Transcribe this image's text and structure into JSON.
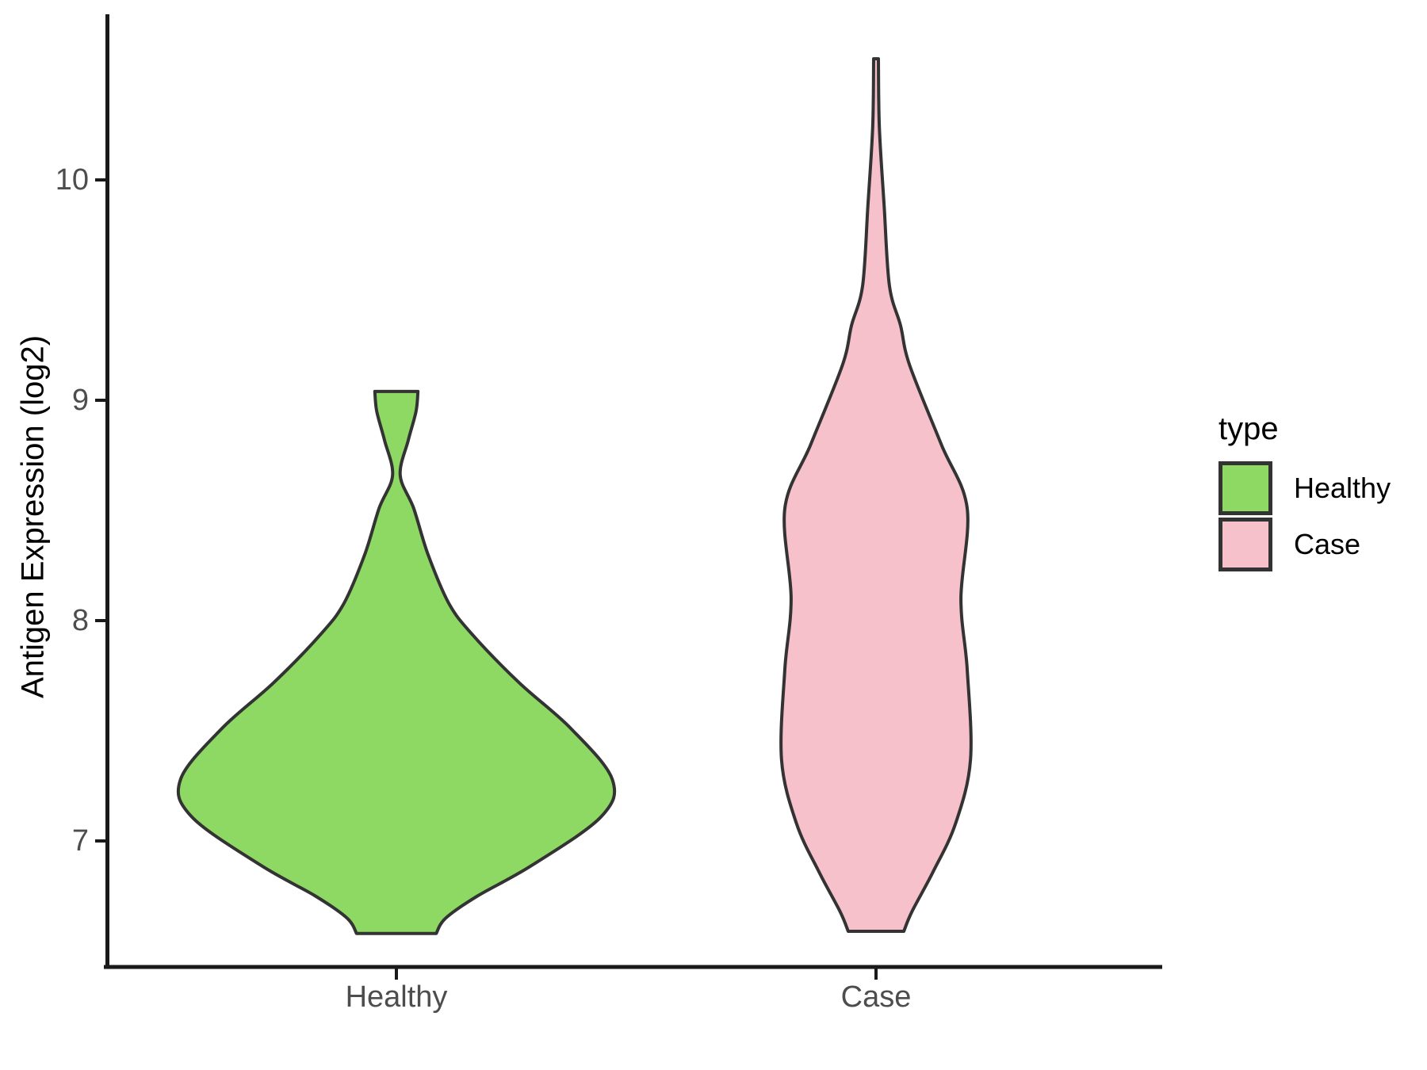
{
  "y_axis": {
    "title": "Antigen Expression (log2)",
    "ticks": [
      10,
      9,
      8,
      7
    ]
  },
  "x_axis": {
    "categories": [
      "Healthy",
      "Case"
    ]
  },
  "legend": {
    "title": "type",
    "items": [
      {
        "label": "Healthy",
        "color": "#8ED964"
      },
      {
        "label": "Case",
        "color": "#F7C1CC"
      }
    ]
  },
  "chart_data": {
    "type": "violin",
    "title": "",
    "xlabel": "",
    "ylabel": "Antigen Expression (log2)",
    "categories": [
      "Healthy",
      "Case"
    ],
    "y_ticks": [
      7,
      8,
      9,
      10
    ],
    "y_range_shown": [
      6.45,
      10.7
    ],
    "grid": "off",
    "legend_position": "right",
    "outline_color": "#333333",
    "axis_color": "#1a1a1a",
    "tick_label_color": "#4d4d4d",
    "series": [
      {
        "name": "Healthy",
        "fill": "#8ED964",
        "summary": {
          "min": 6.58,
          "max": 9.04,
          "widest_at": 7.28,
          "shape": "wide unimodal bulge near 7.3 with narrow neck at 8.66 and small flat cap at 9.0"
        },
        "profile": [
          [
            9.04,
            0.045
          ],
          [
            8.95,
            0.041
          ],
          [
            8.82,
            0.025
          ],
          [
            8.66,
            0.008
          ],
          [
            8.51,
            0.036
          ],
          [
            8.3,
            0.066
          ],
          [
            8.08,
            0.109
          ],
          [
            7.94,
            0.157
          ],
          [
            7.72,
            0.255
          ],
          [
            7.51,
            0.364
          ],
          [
            7.28,
            0.45
          ],
          [
            7.11,
            0.427
          ],
          [
            6.89,
            0.283
          ],
          [
            6.75,
            0.169
          ],
          [
            6.65,
            0.103
          ],
          [
            6.58,
            0.083
          ]
        ]
      },
      {
        "name": "Case",
        "fill": "#F7C1CC",
        "summary": {
          "min": 6.59,
          "max": 10.55,
          "widest_at": 7.37,
          "shape": "tall narrow violin with long thin spike to 10.55, gentle bulges around 8.5 and 7.4"
        },
        "profile": [
          [
            10.55,
            0.005
          ],
          [
            10.24,
            0.007
          ],
          [
            9.88,
            0.017
          ],
          [
            9.52,
            0.028
          ],
          [
            9.34,
            0.051
          ],
          [
            9.16,
            0.07
          ],
          [
            8.8,
            0.136
          ],
          [
            8.51,
            0.19
          ],
          [
            8.1,
            0.177
          ],
          [
            7.78,
            0.19
          ],
          [
            7.37,
            0.197
          ],
          [
            7.08,
            0.166
          ],
          [
            6.86,
            0.119
          ],
          [
            6.68,
            0.075
          ],
          [
            6.59,
            0.058
          ]
        ]
      }
    ]
  }
}
